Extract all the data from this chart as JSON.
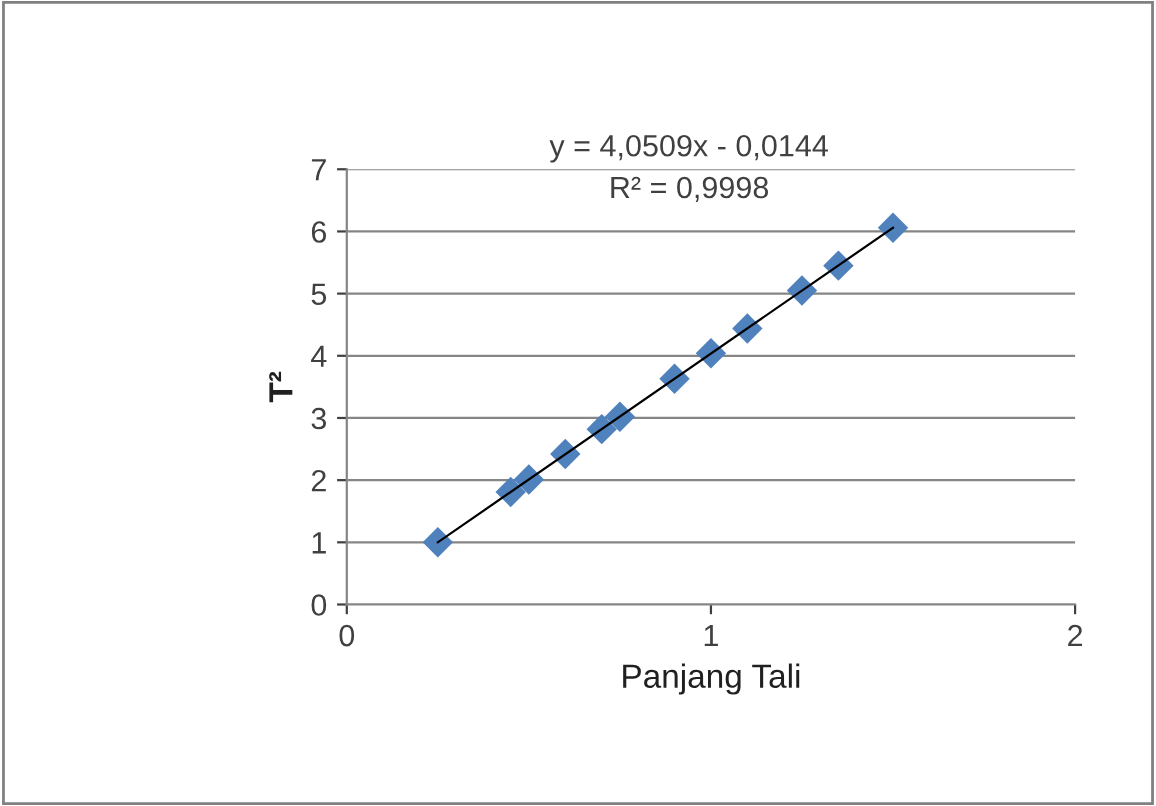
{
  "chart_data": {
    "type": "scatter",
    "xlabel": "Panjang Tali",
    "ylabel": "T²",
    "xlim": [
      0,
      2
    ],
    "xticks": [
      0,
      1,
      2
    ],
    "ylim": [
      0,
      7
    ],
    "yticks": [
      0,
      1,
      2,
      3,
      4,
      5,
      6,
      7
    ],
    "grid": "y",
    "marker": "diamond",
    "series": [
      {
        "color": "#4f81bd",
        "x": [
          0.25,
          0.45,
          0.5,
          0.6,
          0.7,
          0.75,
          0.9,
          1.0,
          1.1,
          1.25,
          1.35,
          1.5
        ],
        "values": [
          1.0,
          1.81,
          2.01,
          2.42,
          2.82,
          3.02,
          3.63,
          4.04,
          4.44,
          5.05,
          5.45,
          6.06
        ]
      },
      {
        "type": "line",
        "color": "#000000",
        "marker": "none",
        "x": [
          0.25,
          1.5
        ],
        "values": [
          1.0,
          6.06
        ]
      }
    ],
    "annotations": [
      "y = 4,0509x - 0,0144\nR² = 0,9998"
    ]
  }
}
